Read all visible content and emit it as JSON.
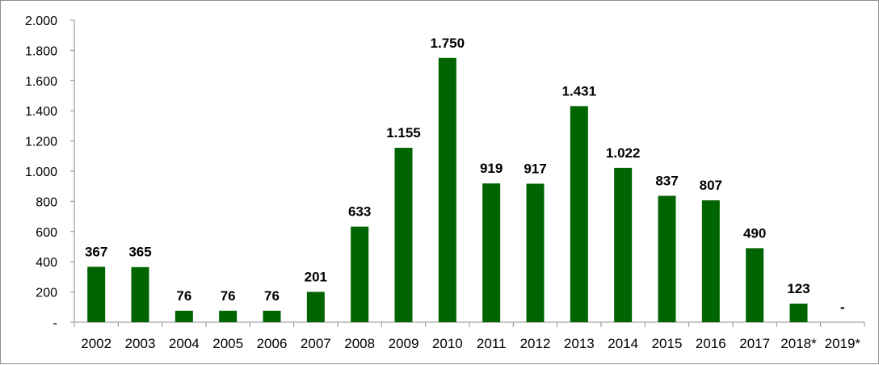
{
  "chart_data": {
    "type": "bar",
    "title": "",
    "xlabel": "",
    "ylabel": "",
    "ylim": [
      0,
      2000
    ],
    "yticks": [
      0,
      200,
      400,
      600,
      800,
      1000,
      1200,
      1400,
      1600,
      1800,
      2000
    ],
    "ytick_labels": [
      "-",
      "200",
      "400",
      "600",
      "800",
      "1.000",
      "1.200",
      "1.400",
      "1.600",
      "1.800",
      "2.000"
    ],
    "grid": false,
    "legend": "none",
    "bar_color": "#006400",
    "categories": [
      "2002",
      "2003",
      "2004",
      "2005",
      "2006",
      "2007",
      "2008",
      "2009",
      "2010",
      "2011",
      "2012",
      "2013",
      "2014",
      "2015",
      "2016",
      "2017",
      "2018*",
      "2019*"
    ],
    "values": [
      367,
      365,
      76,
      76,
      76,
      201,
      633,
      1155,
      1750,
      919,
      917,
      1431,
      1022,
      837,
      807,
      490,
      123,
      0
    ],
    "value_labels": [
      "367",
      "365",
      "76",
      "76",
      "76",
      "201",
      "633",
      "1.155",
      "1.750",
      "919",
      "917",
      "1.431",
      "1.022",
      "837",
      "807",
      "490",
      "123",
      "-"
    ]
  }
}
